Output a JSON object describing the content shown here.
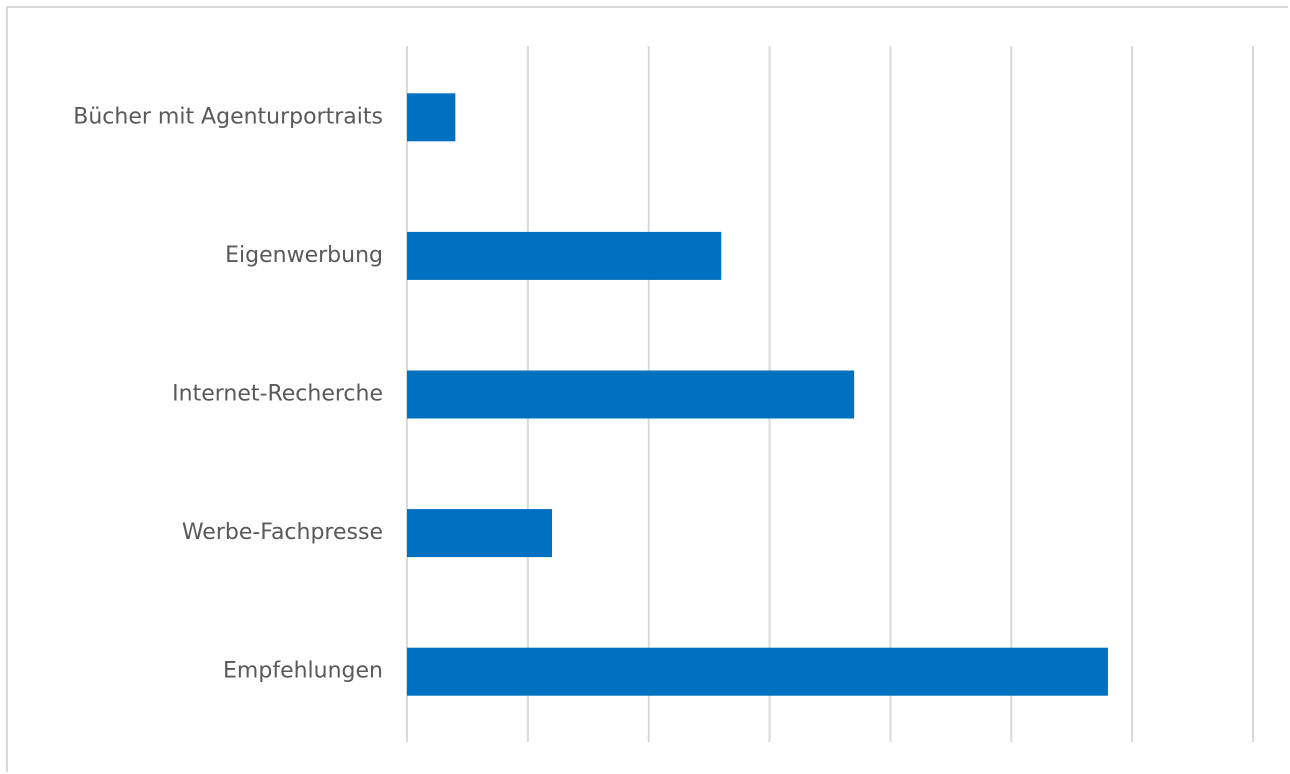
{
  "chart_data": {
    "type": "bar",
    "orientation": "horizontal",
    "categories": [
      "Bücher mit Agenturportraits",
      "Eigenwerbung",
      "Internet-Recherche",
      "Werbe-Fachpresse",
      "Empfehlungen"
    ],
    "values": [
      0.4,
      2.6,
      3.7,
      1.2,
      5.8
    ],
    "xlim": [
      0,
      7
    ],
    "grid": true,
    "tick_labels_shown": false,
    "bar_color": "#0070c0",
    "grid_color": "#d9d9d9",
    "label_color": "#595959"
  }
}
